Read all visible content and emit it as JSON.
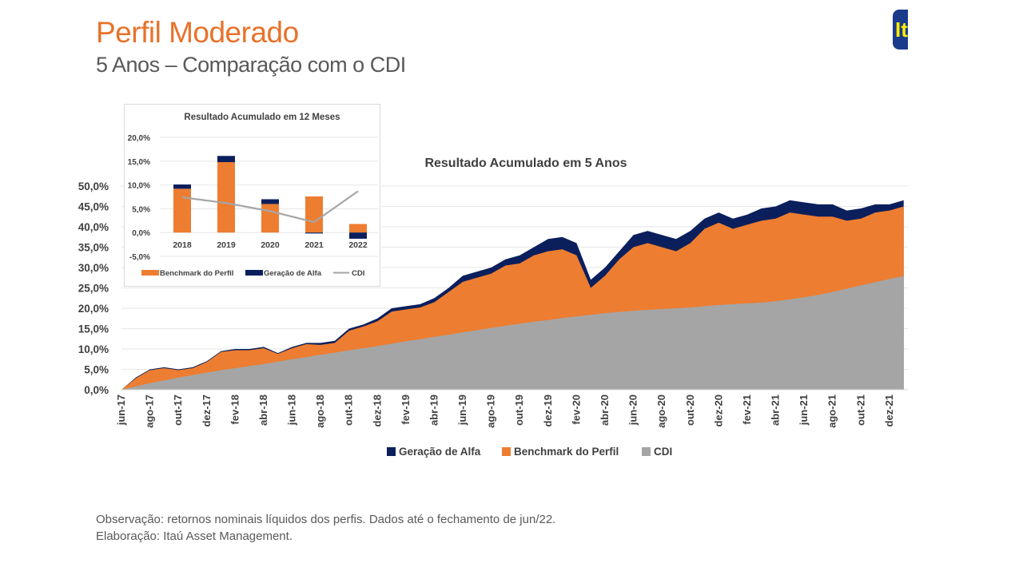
{
  "header": {
    "title": "Perfil Moderado",
    "subtitle": "5 Anos – Comparação com o CDI",
    "logo_text": "Itaú"
  },
  "footer": {
    "note": "Observação: retornos nominais líquidos dos perfis. Dados até o fechamento de jun/22.",
    "credit": "Elaboração: Itaú Asset Management."
  },
  "colors": {
    "alfa": "#0B1F5C",
    "benchmark": "#ED7D31",
    "cdi": "#A5A5A5",
    "title": "#E8722A"
  },
  "chart_data": [
    {
      "type": "area",
      "title": "Resultado Acumulado em 5 Anos",
      "ylim": [
        0,
        50
      ],
      "yticks": [
        "0,0%",
        "5,0%",
        "10,0%",
        "15,0%",
        "20,0%",
        "25,0%",
        "30,0%",
        "35,0%",
        "40,0%",
        "45,0%",
        "50,0%"
      ],
      "xticks": [
        "jun-17",
        "ago-17",
        "out-17",
        "dez-17",
        "fev-18",
        "abr-18",
        "jun-18",
        "ago-18",
        "out-18",
        "dez-18",
        "fev-19",
        "abr-19",
        "jun-19",
        "ago-19",
        "out-19",
        "dez-19",
        "fev-20",
        "abr-20",
        "jun-20",
        "ago-20",
        "out-20",
        "dez-20",
        "fev-21",
        "abr-21",
        "jun-21",
        "ago-21",
        "out-21",
        "dez-21"
      ],
      "legend": [
        "Geração de Alfa",
        "Benchmark do Perfil",
        "CDI"
      ],
      "legend_position": "bottom",
      "series": [
        {
          "name": "Geração de Alfa (total acumulado)",
          "values": [
            0,
            3,
            5,
            5.5,
            5,
            5.5,
            7,
            9.5,
            10,
            10,
            10.5,
            9,
            10.5,
            11.5,
            11.5,
            12,
            15,
            16,
            17.5,
            20,
            20.5,
            21,
            22.5,
            25,
            28,
            29,
            30,
            32,
            33,
            35,
            37,
            37.5,
            36,
            27,
            30,
            34,
            38,
            39,
            38,
            37,
            39,
            42,
            43.5,
            42,
            43,
            44.5,
            45,
            46.5,
            46,
            45.5,
            45.5,
            44,
            44.5,
            45.5,
            45.5,
            46.5
          ]
        },
        {
          "name": "Benchmark do Perfil",
          "values": [
            0,
            2.8,
            4.8,
            5.3,
            4.8,
            5.3,
            6.8,
            9.3,
            9.7,
            9.7,
            10.2,
            8.8,
            10.2,
            11.2,
            11,
            11.5,
            14.5,
            15.5,
            16.8,
            19.2,
            19.7,
            20.2,
            21.5,
            24,
            26.5,
            27.5,
            28.5,
            30.5,
            31,
            33,
            34,
            34.5,
            33,
            25,
            28,
            32,
            35,
            36,
            35,
            34,
            36,
            39.5,
            41,
            39.5,
            40.5,
            41.5,
            42,
            43.5,
            43,
            42.5,
            42.5,
            41.5,
            42,
            43.5,
            44,
            45
          ]
        },
        {
          "name": "CDI",
          "values": [
            0,
            0.8,
            1.6,
            2.3,
            3,
            3.6,
            4.2,
            4.8,
            5.3,
            5.8,
            6.3,
            6.9,
            7.5,
            8,
            8.6,
            9.1,
            9.7,
            10.2,
            10.7,
            11.3,
            11.9,
            12.4,
            13,
            13.5,
            14.1,
            14.6,
            15.2,
            15.7,
            16.2,
            16.7,
            17.1,
            17.6,
            18,
            18.4,
            18.8,
            19.1,
            19.4,
            19.6,
            19.8,
            20,
            20.2,
            20.5,
            20.8,
            21,
            21.2,
            21.4,
            21.7,
            22.2,
            22.7,
            23.3,
            24,
            24.8,
            25.6,
            26.4,
            27.2,
            27.9
          ]
        }
      ]
    },
    {
      "type": "bar",
      "title": "Resultado Acumulado em 12 Meses",
      "categories": [
        "2018",
        "2019",
        "2020",
        "2021",
        "2022"
      ],
      "ylim": [
        -5,
        20
      ],
      "yticks": [
        "-5,0%",
        "0,0%",
        "5,0%",
        "10,0%",
        "15,0%",
        "20,0%"
      ],
      "legend": [
        "Benchmark do Perfil",
        "Geração de Alfa",
        "CDI"
      ],
      "legend_position": "bottom",
      "series": [
        {
          "name": "Benchmark do Perfil",
          "values": [
            9.2,
            14.8,
            6.0,
            7.6,
            1.8
          ]
        },
        {
          "name": "Geração de Alfa",
          "values": [
            0.9,
            1.3,
            1.0,
            -0.2,
            -1.3
          ]
        },
        {
          "name": "CDI",
          "type": "line",
          "values": [
            7.4,
            6.2,
            4.5,
            2.2,
            8.7
          ]
        }
      ]
    }
  ]
}
